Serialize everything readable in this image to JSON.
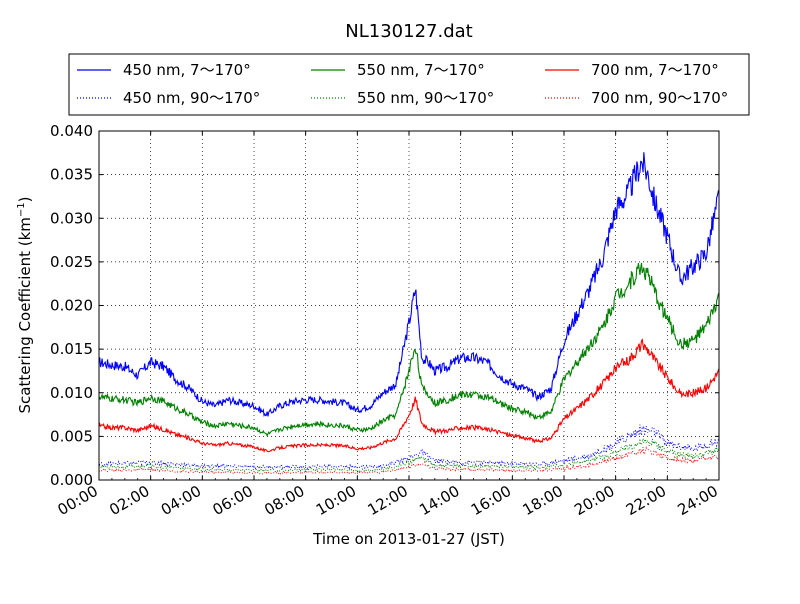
{
  "chart_data": {
    "type": "line",
    "title": "NL130127.dat",
    "xlabel": "Time on 2013-01-27 (JST)",
    "ylabel_main": "Scattering Coefficient (km",
    "ylabel_sup": "−1",
    "ylabel_end": ")",
    "xlim": [
      0,
      24
    ],
    "ylim": [
      0,
      0.04
    ],
    "xticks": [
      0,
      2,
      4,
      6,
      8,
      10,
      12,
      14,
      16,
      18,
      20,
      22,
      24
    ],
    "xtick_labels": [
      "00:00",
      "02:00",
      "04:00",
      "06:00",
      "08:00",
      "10:00",
      "12:00",
      "14:00",
      "16:00",
      "18:00",
      "20:00",
      "22:00",
      "24:00"
    ],
    "yticks": [
      0,
      0.005,
      0.01,
      0.015,
      0.02,
      0.025,
      0.03,
      0.035,
      0.04
    ],
    "ytick_labels": [
      "0.000",
      "0.005",
      "0.010",
      "0.015",
      "0.020",
      "0.025",
      "0.030",
      "0.035",
      "0.040"
    ],
    "grid": true,
    "legend_position": "top, above plot, 3 columns",
    "series": [
      {
        "name": "450 nm, 7～170°",
        "color": "#0000ff",
        "style": "solid",
        "x": [
          0,
          0.5,
          1,
          1.5,
          2,
          2.5,
          3,
          3.5,
          4,
          4.5,
          5,
          5.5,
          6,
          6.5,
          7,
          7.5,
          8,
          8.5,
          9,
          9.5,
          10,
          10.5,
          11,
          11.5,
          12,
          12.25,
          12.5,
          12.75,
          13,
          13.5,
          14,
          14.5,
          15,
          15.5,
          16,
          16.5,
          17,
          17.5,
          18,
          18.5,
          19,
          19.5,
          20,
          20.5,
          21,
          21.25,
          21.5,
          22,
          22.5,
          23,
          23.5,
          24
        ],
        "y": [
          0.0135,
          0.0132,
          0.013,
          0.012,
          0.0135,
          0.013,
          0.0115,
          0.0105,
          0.009,
          0.0085,
          0.0092,
          0.0088,
          0.0085,
          0.0075,
          0.0085,
          0.009,
          0.0092,
          0.0092,
          0.009,
          0.0088,
          0.008,
          0.0085,
          0.01,
          0.011,
          0.018,
          0.022,
          0.014,
          0.0135,
          0.0125,
          0.013,
          0.014,
          0.014,
          0.0135,
          0.012,
          0.011,
          0.0105,
          0.0095,
          0.0105,
          0.016,
          0.019,
          0.022,
          0.0255,
          0.031,
          0.033,
          0.0365,
          0.035,
          0.032,
          0.028,
          0.023,
          0.0245,
          0.026,
          0.0325
        ]
      },
      {
        "name": "550 nm, 7～170°",
        "color": "#008000",
        "style": "solid",
        "x": [
          0,
          0.5,
          1,
          1.5,
          2,
          2.5,
          3,
          3.5,
          4,
          4.5,
          5,
          5.5,
          6,
          6.5,
          7,
          7.5,
          8,
          8.5,
          9,
          9.5,
          10,
          10.5,
          11,
          11.5,
          12,
          12.25,
          12.5,
          12.75,
          13,
          13.5,
          14,
          14.5,
          15,
          15.5,
          16,
          16.5,
          17,
          17.5,
          18,
          18.5,
          19,
          19.5,
          20,
          20.5,
          21,
          21.25,
          21.5,
          22,
          22.5,
          23,
          23.5,
          24
        ],
        "y": [
          0.0095,
          0.0093,
          0.0092,
          0.0088,
          0.0095,
          0.009,
          0.0082,
          0.0075,
          0.0066,
          0.0062,
          0.0065,
          0.0062,
          0.006,
          0.0052,
          0.0058,
          0.0062,
          0.0064,
          0.0064,
          0.0063,
          0.0062,
          0.0057,
          0.0058,
          0.0068,
          0.0075,
          0.0125,
          0.0155,
          0.0105,
          0.0098,
          0.0088,
          0.0092,
          0.0098,
          0.0098,
          0.0095,
          0.0088,
          0.0082,
          0.0078,
          0.0072,
          0.0078,
          0.0115,
          0.0135,
          0.0155,
          0.0175,
          0.021,
          0.0225,
          0.0245,
          0.0235,
          0.0215,
          0.0185,
          0.0155,
          0.016,
          0.0175,
          0.021
        ]
      },
      {
        "name": "700 nm, 7～170°",
        "color": "#ff0000",
        "style": "solid",
        "x": [
          0,
          0.5,
          1,
          1.5,
          2,
          2.5,
          3,
          3.5,
          4,
          4.5,
          5,
          5.5,
          6,
          6.5,
          7,
          7.5,
          8,
          8.5,
          9,
          9.5,
          10,
          10.5,
          11,
          11.5,
          12,
          12.25,
          12.5,
          12.75,
          13,
          13.5,
          14,
          14.5,
          15,
          15.5,
          16,
          16.5,
          17,
          17.5,
          18,
          18.5,
          19,
          19.5,
          20,
          20.5,
          21,
          21.25,
          21.5,
          22,
          22.5,
          23,
          23.5,
          24
        ],
        "y": [
          0.0062,
          0.006,
          0.006,
          0.0057,
          0.0062,
          0.0058,
          0.0052,
          0.0048,
          0.0042,
          0.004,
          0.0042,
          0.004,
          0.0038,
          0.0033,
          0.0037,
          0.0039,
          0.004,
          0.004,
          0.004,
          0.0039,
          0.0036,
          0.0037,
          0.0043,
          0.0048,
          0.0075,
          0.0093,
          0.0065,
          0.006,
          0.0055,
          0.0057,
          0.006,
          0.006,
          0.0058,
          0.0055,
          0.0051,
          0.0048,
          0.0044,
          0.0048,
          0.007,
          0.0082,
          0.0095,
          0.011,
          0.0128,
          0.0138,
          0.0155,
          0.015,
          0.0138,
          0.0118,
          0.0098,
          0.01,
          0.0105,
          0.0125
        ]
      },
      {
        "name": "450 nm, 90～170°",
        "color": "#0000ff",
        "style": "dotted",
        "x": [
          0,
          1,
          2,
          3,
          4,
          5,
          6,
          7,
          8,
          9,
          10,
          11,
          12,
          12.5,
          13,
          14,
          15,
          16,
          17,
          18,
          19,
          20,
          20.5,
          21,
          21.5,
          22,
          23,
          24
        ],
        "y": [
          0.0018,
          0.0019,
          0.002,
          0.0018,
          0.0016,
          0.0016,
          0.0015,
          0.0015,
          0.0015,
          0.0016,
          0.0015,
          0.0016,
          0.0025,
          0.0032,
          0.0022,
          0.002,
          0.002,
          0.0019,
          0.0018,
          0.0022,
          0.0028,
          0.0042,
          0.005,
          0.0058,
          0.0055,
          0.0042,
          0.0035,
          0.0045
        ]
      },
      {
        "name": "550 nm, 90～170°",
        "color": "#008000",
        "style": "dotted",
        "x": [
          0,
          1,
          2,
          3,
          4,
          5,
          6,
          7,
          8,
          9,
          10,
          11,
          12,
          12.5,
          13,
          14,
          15,
          16,
          17,
          18,
          19,
          20,
          20.5,
          21,
          21.5,
          22,
          23,
          24
        ],
        "y": [
          0.0015,
          0.0015,
          0.0016,
          0.0014,
          0.0012,
          0.0012,
          0.0011,
          0.0011,
          0.0012,
          0.0012,
          0.0011,
          0.0012,
          0.002,
          0.0026,
          0.0017,
          0.0016,
          0.0016,
          0.0015,
          0.0014,
          0.0017,
          0.0022,
          0.0032,
          0.0038,
          0.0044,
          0.0042,
          0.0032,
          0.0027,
          0.0035
        ]
      },
      {
        "name": "700 nm, 90～170°",
        "color": "#ff0000",
        "style": "dotted",
        "x": [
          0,
          1,
          2,
          3,
          4,
          5,
          6,
          7,
          8,
          9,
          10,
          11,
          12,
          12.5,
          13,
          14,
          15,
          16,
          17,
          18,
          19,
          20,
          20.5,
          21,
          21.5,
          22,
          23,
          24
        ],
        "y": [
          0.0011,
          0.0011,
          0.0012,
          0.001,
          0.0009,
          0.0009,
          0.0008,
          0.0008,
          0.0009,
          0.0009,
          0.0008,
          0.0009,
          0.0015,
          0.002,
          0.0013,
          0.0012,
          0.0012,
          0.0011,
          0.0011,
          0.0013,
          0.0017,
          0.0025,
          0.003,
          0.0034,
          0.0032,
          0.0025,
          0.0021,
          0.0027
        ]
      }
    ]
  }
}
